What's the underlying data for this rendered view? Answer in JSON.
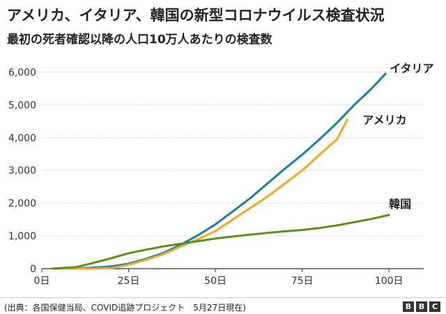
{
  "header": {
    "title": "アメリカ、イタリア、韓国の新型コロナウイルス検査状況",
    "subtitle": "最初の死者確認以降の人口10万人あたりの検査数"
  },
  "footer": {
    "source": "(出典：各国保健当局、COVID追跡プロジェクト　5月27日現在)",
    "logo": [
      "B",
      "B",
      "C"
    ]
  },
  "colors": {
    "italy": "#1b7ea5",
    "usa": "#f4a52a",
    "korea": "#5a8f1b",
    "grid": "#cfcfcf",
    "axis": "#333333"
  },
  "chart_data": {
    "type": "line",
    "title": "",
    "xlabel": "",
    "ylabel": "",
    "xlim": [
      0,
      110
    ],
    "ylim": [
      0,
      6200
    ],
    "grid": "horizontal",
    "legend": "inline labels at line ends",
    "x_ticks": [
      0,
      25,
      50,
      75,
      100
    ],
    "x_tick_labels": [
      "0日",
      "25日",
      "50日",
      "75日",
      "100日"
    ],
    "y_ticks": [
      0,
      1000,
      2000,
      3000,
      4000,
      5000,
      6000
    ],
    "y_tick_labels": [
      "0",
      "1,000",
      "2,000",
      "3,000",
      "4,000",
      "5,000",
      "6,000"
    ],
    "series": [
      {
        "name": "イタリア",
        "color_key": "italy",
        "x": [
          3,
          10,
          15,
          20,
          25,
          30,
          35,
          40,
          45,
          50,
          55,
          60,
          65,
          70,
          75,
          80,
          85,
          90,
          95,
          99
        ],
        "y": [
          0,
          10,
          30,
          70,
          150,
          300,
          480,
          730,
          1020,
          1350,
          1750,
          2150,
          2600,
          3050,
          3480,
          3950,
          4450,
          5000,
          5500,
          5950
        ]
      },
      {
        "name": "アメリカ",
        "color_key": "usa",
        "x": [
          3,
          10,
          15,
          20,
          25,
          30,
          35,
          40,
          45,
          50,
          55,
          60,
          65,
          70,
          75,
          80,
          85,
          88
        ],
        "y": [
          0,
          0,
          0,
          20,
          120,
          270,
          440,
          680,
          900,
          1150,
          1500,
          1850,
          2200,
          2600,
          3000,
          3480,
          3950,
          4550
        ]
      },
      {
        "name": "韓国",
        "color_key": "korea",
        "x": [
          3,
          10,
          15,
          20,
          25,
          30,
          35,
          40,
          45,
          50,
          55,
          60,
          65,
          70,
          75,
          80,
          85,
          90,
          95,
          100
        ],
        "y": [
          0,
          50,
          180,
          320,
          470,
          580,
          680,
          760,
          840,
          920,
          980,
          1040,
          1090,
          1140,
          1180,
          1240,
          1320,
          1420,
          1520,
          1640
        ]
      }
    ]
  }
}
